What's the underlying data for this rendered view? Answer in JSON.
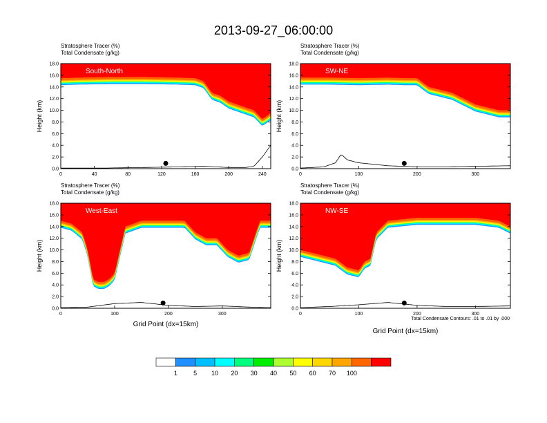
{
  "title": "2013-09-27_06:00:00",
  "subtitle_left": "Stratosphere Tracer   (%)",
  "subtitle_left2": "Total Condensate   (g/kg)",
  "ylabel": "Height (km)",
  "xlabel": "Grid Point (dx=15km)",
  "contour_note": "Total Condensate Contours: .01 to .01 by .000",
  "colorbar": {
    "labels": [
      "1",
      "5",
      "10",
      "20",
      "30",
      "40",
      "50",
      "60",
      "70",
      "100"
    ],
    "colors": [
      "#ffffff",
      "#1e90ff",
      "#00bfff",
      "#00ffff",
      "#00ff7f",
      "#00ee00",
      "#adff2f",
      "#ffff00",
      "#ffd700",
      "#ffa500",
      "#ff6600",
      "#ff0000"
    ]
  },
  "chart_data": [
    {
      "type": "heatmap",
      "label": "South-North",
      "xlim": [
        0,
        250
      ],
      "ylim": [
        0,
        18
      ],
      "xticks": [
        "0",
        "40",
        "80",
        "120",
        "160",
        "200",
        "240"
      ],
      "xtick_values": [
        0,
        40,
        80,
        120,
        160,
        200,
        240
      ],
      "yticks": [
        "0.0",
        "2.0",
        "4.0",
        "6.0",
        "8.0",
        "10.0",
        "12.0",
        "14.0",
        "16.0",
        "18.0"
      ],
      "tropopause_x": [
        0,
        20,
        60,
        100,
        140,
        160,
        170,
        180,
        190,
        200,
        210,
        220,
        230,
        240,
        250
      ],
      "tropopause_km": [
        15.5,
        15.6,
        15.7,
        15.7,
        15.6,
        15.5,
        15.0,
        13.0,
        12.5,
        11.5,
        11.0,
        10.5,
        10.0,
        8.5,
        9.5
      ],
      "marker": {
        "x": 125,
        "km": 0.9
      },
      "terrain_x": [
        0,
        50,
        100,
        140,
        170,
        200,
        220,
        230,
        240,
        250
      ],
      "terrain_km": [
        0.1,
        0.1,
        0.2,
        0.3,
        0.4,
        0.2,
        0.2,
        0.4,
        2.0,
        4.0
      ]
    },
    {
      "type": "heatmap",
      "label": "SW-NE",
      "xlim": [
        0,
        360
      ],
      "ylim": [
        0,
        18
      ],
      "xticks": [
        "0",
        "100",
        "200",
        "300"
      ],
      "xtick_values": [
        0,
        100,
        200,
        300
      ],
      "yticks": [
        "0.0",
        "2.0",
        "4.0",
        "6.0",
        "8.0",
        "10.0",
        "12.0",
        "14.0",
        "16.0",
        "18.0"
      ],
      "tropopause_x": [
        0,
        50,
        100,
        150,
        180,
        200,
        220,
        240,
        260,
        280,
        300,
        320,
        340,
        360
      ],
      "tropopause_km": [
        15.6,
        15.6,
        15.5,
        15.6,
        15.5,
        15.5,
        14.0,
        13.5,
        13.0,
        12.0,
        11.0,
        10.5,
        10.0,
        10.0
      ],
      "marker": {
        "x": 178,
        "km": 0.9
      },
      "terrain_x": [
        0,
        40,
        60,
        70,
        80,
        100,
        150,
        200,
        250,
        300,
        360
      ],
      "terrain_km": [
        0.1,
        0.3,
        1.0,
        2.5,
        1.5,
        1.0,
        0.5,
        0.3,
        0.3,
        0.4,
        0.5
      ]
    },
    {
      "type": "heatmap",
      "label": "West-East",
      "xlim": [
        0,
        390
      ],
      "ylim": [
        0,
        18
      ],
      "xticks": [
        "0",
        "100",
        "200",
        "300"
      ],
      "xtick_values": [
        0,
        100,
        200,
        300
      ],
      "yticks": [
        "0.0",
        "2.0",
        "4.0",
        "6.0",
        "8.0",
        "10.0",
        "12.0",
        "14.0",
        "16.0",
        "18.0"
      ],
      "tropopause_x": [
        0,
        20,
        40,
        50,
        60,
        70,
        80,
        90,
        100,
        120,
        150,
        200,
        230,
        250,
        270,
        290,
        310,
        330,
        350,
        370,
        390
      ],
      "tropopause_km": [
        15.0,
        14.5,
        13.0,
        10.0,
        5.0,
        4.5,
        4.5,
        5.0,
        6.0,
        14.0,
        15.0,
        15.0,
        15.0,
        13.0,
        12.0,
        12.0,
        10.0,
        9.0,
        9.5,
        15.0,
        15.0
      ],
      "marker": {
        "x": 190,
        "km": 0.9
      },
      "terrain_x": [
        0,
        50,
        100,
        150,
        200,
        250,
        300,
        350,
        390
      ],
      "terrain_km": [
        0.1,
        0.2,
        0.8,
        1.0,
        0.5,
        0.3,
        0.4,
        0.2,
        0.1
      ]
    },
    {
      "type": "heatmap",
      "label": "NW-SE",
      "xlim": [
        0,
        360
      ],
      "ylim": [
        0,
        18
      ],
      "xticks": [
        "0",
        "100",
        "200",
        "300"
      ],
      "xtick_values": [
        0,
        100,
        200,
        300
      ],
      "yticks": [
        "0.0",
        "2.0",
        "4.0",
        "6.0",
        "8.0",
        "10.0",
        "12.0",
        "14.0",
        "16.0",
        "18.0"
      ],
      "tropopause_x": [
        0,
        20,
        40,
        60,
        80,
        100,
        110,
        120,
        130,
        150,
        200,
        250,
        300,
        340,
        360
      ],
      "tropopause_km": [
        10.0,
        9.5,
        9.0,
        8.5,
        7.0,
        6.5,
        8.0,
        8.5,
        13.0,
        15.0,
        15.5,
        15.5,
        15.5,
        15.0,
        14.0
      ],
      "marker": {
        "x": 178,
        "km": 0.9
      },
      "terrain_x": [
        0,
        50,
        100,
        150,
        200,
        250,
        300,
        360
      ],
      "terrain_km": [
        0.1,
        0.3,
        0.6,
        1.0,
        0.5,
        0.3,
        0.3,
        0.4
      ]
    }
  ]
}
